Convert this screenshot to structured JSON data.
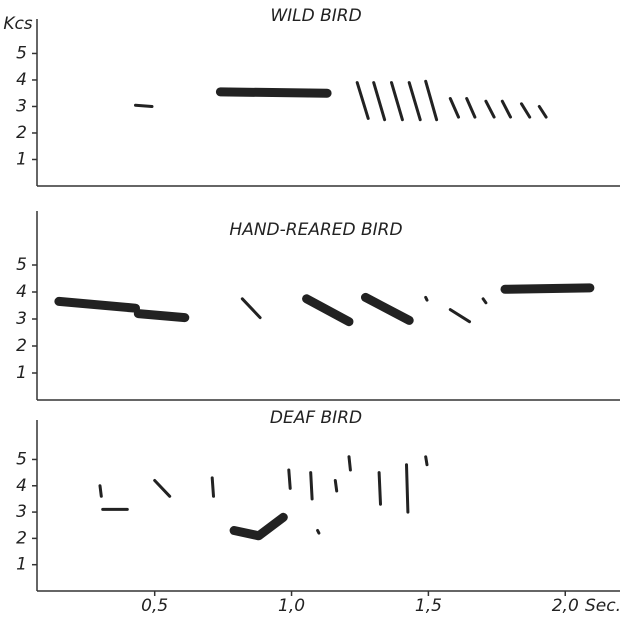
{
  "chart_data": [
    {
      "type": "sonogram",
      "title": "WILD BIRD",
      "y_label": "Kcs",
      "color": "#222",
      "xlim": [
        0.07,
        2.2
      ],
      "ylim": [
        0,
        6.3
      ],
      "yticks": [
        1,
        2,
        3,
        4,
        5
      ],
      "series": [
        {
          "x": [
            0.43,
            0.49
          ],
          "values": [
            3.05,
            3.0
          ]
        },
        {
          "x": [
            0.74,
            1.13
          ],
          "values": [
            3.55,
            3.5
          ]
        },
        {
          "x": [
            1.24,
            1.28
          ],
          "values": [
            3.9,
            2.55
          ]
        },
        {
          "x": [
            1.3,
            1.34
          ],
          "values": [
            3.9,
            2.5
          ]
        },
        {
          "x": [
            1.365,
            1.405
          ],
          "values": [
            3.9,
            2.5
          ]
        },
        {
          "x": [
            1.43,
            1.47
          ],
          "values": [
            3.9,
            2.5
          ]
        },
        {
          "x": [
            1.49,
            1.53
          ],
          "values": [
            3.95,
            2.5
          ]
        },
        {
          "x": [
            1.58,
            1.61
          ],
          "values": [
            3.3,
            2.6
          ]
        },
        {
          "x": [
            1.64,
            1.67
          ],
          "values": [
            3.3,
            2.6
          ]
        },
        {
          "x": [
            1.71,
            1.74
          ],
          "values": [
            3.2,
            2.6
          ]
        },
        {
          "x": [
            1.77,
            1.8
          ],
          "values": [
            3.2,
            2.6
          ]
        },
        {
          "x": [
            1.84,
            1.87
          ],
          "values": [
            3.1,
            2.6
          ]
        },
        {
          "x": [
            1.905,
            1.93
          ],
          "values": [
            3.0,
            2.6
          ]
        }
      ]
    },
    {
      "type": "sonogram",
      "title": "HAND-REARED BIRD",
      "color": "#222",
      "xlim": [
        0.07,
        2.2
      ],
      "ylim": [
        0,
        7
      ],
      "yticks": [
        1,
        2,
        3,
        4,
        5
      ],
      "series": [
        {
          "x": [
            0.15,
            0.43
          ],
          "values": [
            3.65,
            3.4
          ]
        },
        {
          "x": [
            0.44,
            0.61
          ],
          "values": [
            3.2,
            3.05
          ]
        },
        {
          "x": [
            0.82,
            0.885
          ],
          "values": [
            3.75,
            3.05
          ]
        },
        {
          "x": [
            1.055,
            1.21
          ],
          "values": [
            3.75,
            2.9
          ]
        },
        {
          "x": [
            1.27,
            1.43
          ],
          "values": [
            3.8,
            2.95
          ]
        },
        {
          "x": [
            1.49,
            1.495
          ],
          "values": [
            3.8,
            3.7
          ]
        },
        {
          "x": [
            1.58,
            1.65
          ],
          "values": [
            3.35,
            2.9
          ]
        },
        {
          "x": [
            1.7,
            1.71
          ],
          "values": [
            3.75,
            3.6
          ]
        },
        {
          "x": [
            1.78,
            2.09
          ],
          "values": [
            4.1,
            4.15
          ]
        }
      ]
    },
    {
      "type": "sonogram",
      "title": "DEAF BIRD",
      "x_label": "Sec.",
      "color": "#222",
      "xlim": [
        0.07,
        2.2
      ],
      "ylim": [
        0,
        6.5
      ],
      "yticks": [
        1,
        2,
        3,
        4,
        5
      ],
      "xticks": [
        {
          "value": 0.5,
          "label": "0,5"
        },
        {
          "value": 1.0,
          "label": "1,0"
        },
        {
          "value": 1.5,
          "label": "1,5"
        },
        {
          "value": 2.0,
          "label": "2,0"
        }
      ],
      "series": [
        {
          "x": [
            0.3,
            0.305
          ],
          "values": [
            4.0,
            3.6
          ]
        },
        {
          "x": [
            0.31,
            0.4
          ],
          "values": [
            3.1,
            3.1
          ]
        },
        {
          "x": [
            0.5,
            0.555
          ],
          "values": [
            4.2,
            3.6
          ]
        },
        {
          "x": [
            0.71,
            0.715
          ],
          "values": [
            4.3,
            3.6
          ]
        },
        {
          "x": [
            0.79,
            0.88,
            0.97
          ],
          "values": [
            2.3,
            2.1,
            2.8
          ]
        },
        {
          "x": [
            0.99,
            0.995
          ],
          "values": [
            4.6,
            3.9
          ]
        },
        {
          "x": [
            1.07,
            1.075
          ],
          "values": [
            4.5,
            3.5
          ]
        },
        {
          "x": [
            1.095,
            1.1
          ],
          "values": [
            2.3,
            2.2
          ]
        },
        {
          "x": [
            1.16,
            1.165
          ],
          "values": [
            4.2,
            3.8
          ]
        },
        {
          "x": [
            1.21,
            1.215
          ],
          "values": [
            5.1,
            4.6
          ]
        },
        {
          "x": [
            1.32,
            1.325
          ],
          "values": [
            4.5,
            3.3
          ]
        },
        {
          "x": [
            1.42,
            1.425
          ],
          "values": [
            4.8,
            3.0
          ]
        },
        {
          "x": [
            1.49,
            1.495
          ],
          "values": [
            5.1,
            4.8
          ]
        }
      ]
    }
  ]
}
